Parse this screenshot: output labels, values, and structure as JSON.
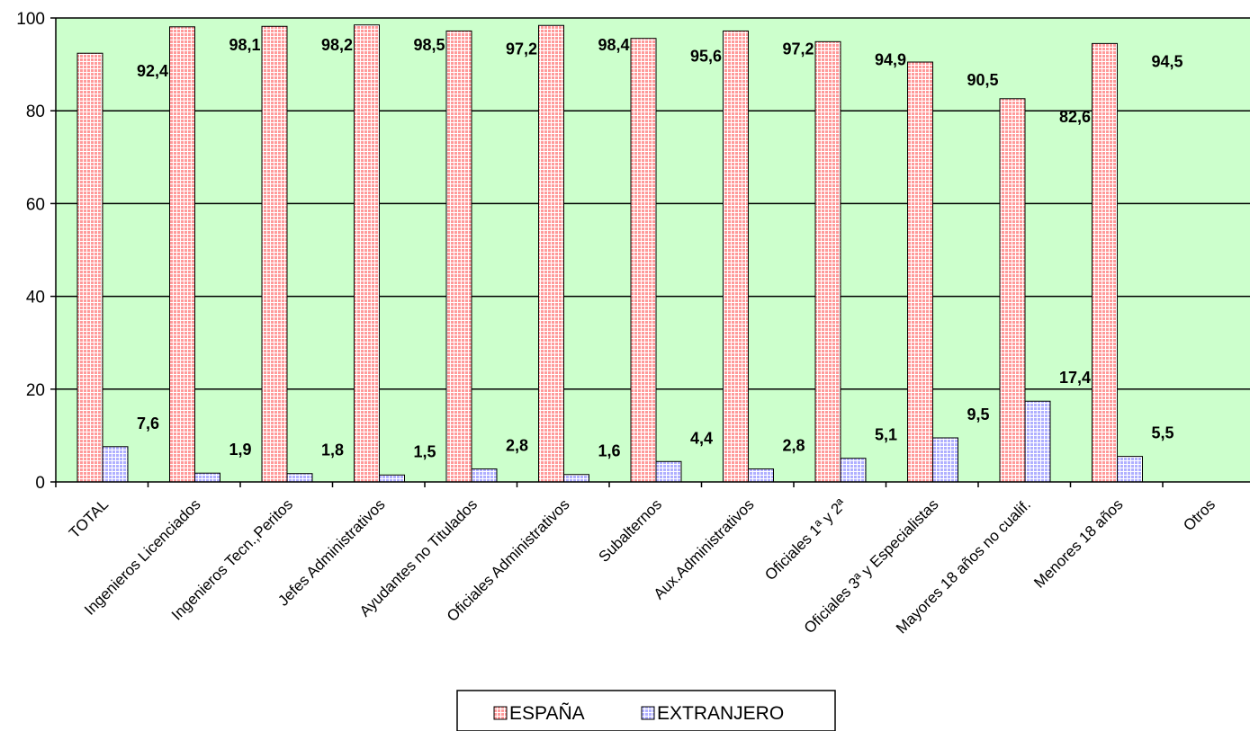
{
  "chart_data": {
    "type": "bar",
    "categories": [
      "TOTAL",
      "Ingenieros Licenciados",
      "Ingenieros Tecn.,Peritos",
      "Jefes Administrativos",
      "Ayudantes no Titulados",
      "Oficiales Administrativos",
      "Subalternos",
      "Aux.Administrativos",
      "Oficiales 1ª y 2ª",
      "Oficiales 3ª y Especialistas",
      "Mayores 18 años no cualif.",
      "Menores 18 años",
      "Otros"
    ],
    "series": [
      {
        "name": "ESPAÑA",
        "values": [
          92.4,
          98.1,
          98.2,
          98.5,
          97.2,
          98.4,
          95.6,
          97.2,
          94.9,
          90.5,
          82.6,
          94.5,
          null
        ],
        "labels": [
          "92,4",
          "98,1",
          "98,2",
          "98,5",
          "97,2",
          "98,4",
          "95,6",
          "97,2",
          "94,9",
          "90,5",
          "82,6",
          "94,5",
          ""
        ]
      },
      {
        "name": "EXTRANJERO",
        "values": [
          7.6,
          1.9,
          1.8,
          1.5,
          2.8,
          1.6,
          4.4,
          2.8,
          5.1,
          9.5,
          17.4,
          5.5,
          null
        ],
        "labels": [
          "7,6",
          "1,9",
          "1,8",
          "1,5",
          "2,8",
          "1,6",
          "4,4",
          "2,8",
          "5,1",
          "9,5",
          "17,4",
          "5,5",
          ""
        ]
      }
    ],
    "yticks": [
      "0",
      "20",
      "40",
      "60",
      "80",
      "100"
    ],
    "ylim": [
      0,
      100
    ],
    "grid": true,
    "legend_position": "bottom-center",
    "colors": {
      "plot_background": "#ccffcc",
      "espana_fill": "#ff9a9a",
      "espana_hatch": "#ffffff",
      "extranjero_fill": "#b0b0ff",
      "extranjero_hatch": "#ffffff",
      "gridline": "#000000"
    }
  }
}
